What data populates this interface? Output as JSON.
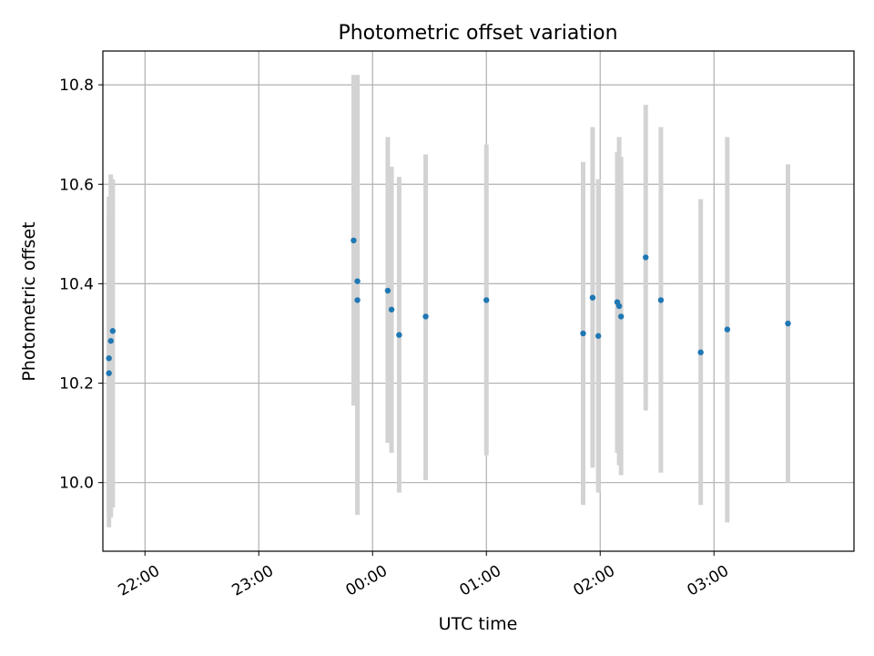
{
  "chart_data": {
    "type": "scatter",
    "title": "Photometric offset variation",
    "xlabel": "UTC time",
    "ylabel": "Photometric offset",
    "x_tick_labels": [
      "22:00",
      "23:00",
      "00:00",
      "01:00",
      "02:00",
      "03:00"
    ],
    "y_tick_labels": [
      "10.0",
      "10.2",
      "10.4",
      "10.6",
      "10.8"
    ],
    "x_tick_hours": [
      22,
      23,
      24,
      25,
      26,
      27
    ],
    "y_ticks": [
      10.0,
      10.2,
      10.4,
      10.6,
      10.8
    ],
    "xlim_hours": [
      21.63,
      28.23
    ],
    "ylim": [
      9.862,
      10.868
    ],
    "grid": true,
    "marker_color": "#1f77b4",
    "errorbar_color": "#d3d3d3",
    "points": [
      {
        "t": "21:41",
        "y": 10.22,
        "lo": 9.91,
        "hi": 10.575
      },
      {
        "t": "21:41",
        "y": 10.25,
        "lo": 9.94,
        "hi": 10.535
      },
      {
        "t": "21:42",
        "y": 10.285,
        "lo": 9.93,
        "hi": 10.62
      },
      {
        "t": "21:43",
        "y": 10.305,
        "lo": 9.95,
        "hi": 10.61
      },
      {
        "t": "23:50",
        "y": 10.487,
        "lo": 10.155,
        "hi": 10.82
      },
      {
        "t": "23:52",
        "y": 10.405,
        "lo": 9.935,
        "hi": 10.82
      },
      {
        "t": "23:52",
        "y": 10.367,
        "lo": 10.0,
        "hi": 10.82
      },
      {
        "t": "00:08",
        "y": 10.386,
        "lo": 10.08,
        "hi": 10.695
      },
      {
        "t": "00:10",
        "y": 10.348,
        "lo": 10.06,
        "hi": 10.635
      },
      {
        "t": "00:14",
        "y": 10.297,
        "lo": 9.98,
        "hi": 10.615
      },
      {
        "t": "00:28",
        "y": 10.334,
        "lo": 10.005,
        "hi": 10.66
      },
      {
        "t": "01:00",
        "y": 10.367,
        "lo": 10.055,
        "hi": 10.68
      },
      {
        "t": "01:51",
        "y": 10.3,
        "lo": 9.955,
        "hi": 10.645
      },
      {
        "t": "01:56",
        "y": 10.372,
        "lo": 10.03,
        "hi": 10.715
      },
      {
        "t": "01:59",
        "y": 10.295,
        "lo": 9.98,
        "hi": 10.61
      },
      {
        "t": "02:09",
        "y": 10.363,
        "lo": 10.06,
        "hi": 10.665
      },
      {
        "t": "02:10",
        "y": 10.355,
        "lo": 10.035,
        "hi": 10.695
      },
      {
        "t": "02:11",
        "y": 10.334,
        "lo": 10.015,
        "hi": 10.655
      },
      {
        "t": "02:24",
        "y": 10.453,
        "lo": 10.145,
        "hi": 10.76
      },
      {
        "t": "02:32",
        "y": 10.367,
        "lo": 10.02,
        "hi": 10.715
      },
      {
        "t": "02:53",
        "y": 10.262,
        "lo": 9.955,
        "hi": 10.57
      },
      {
        "t": "03:07",
        "y": 10.308,
        "lo": 9.92,
        "hi": 10.695
      },
      {
        "t": "03:39",
        "y": 10.32,
        "lo": 10.0,
        "hi": 10.64
      }
    ]
  }
}
